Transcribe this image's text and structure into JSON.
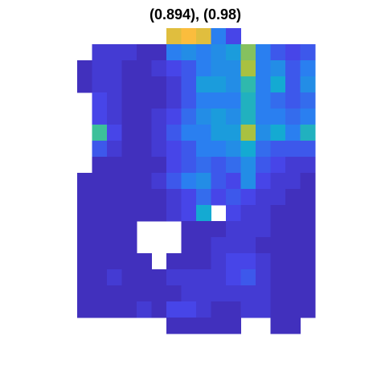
{
  "chart_data": {
    "type": "heatmap",
    "title": "(0.894), (0.98)",
    "colormap": "parula",
    "values": [
      [
        null,
        null,
        null,
        null,
        null,
        null,
        0.85,
        0.9,
        0.85,
        0.3,
        0.15,
        null,
        null,
        null,
        null,
        null
      ],
      [
        null,
        0.1,
        0.1,
        0.1,
        0.05,
        0.05,
        0.3,
        0.35,
        0.3,
        0.35,
        0.4,
        0.7,
        0.3,
        0.2,
        0.15,
        0.2
      ],
      [
        0.05,
        0.1,
        0.1,
        0.05,
        0.05,
        0.1,
        0.15,
        0.2,
        0.3,
        0.35,
        0.35,
        0.75,
        0.3,
        0.35,
        0.2,
        0.3
      ],
      [
        0.05,
        0.1,
        0.1,
        0.05,
        0.05,
        0.05,
        0.1,
        0.2,
        0.4,
        0.4,
        0.35,
        0.55,
        0.3,
        0.45,
        0.2,
        0.35
      ],
      [
        null,
        0.15,
        0.1,
        0.05,
        0.05,
        0.05,
        0.1,
        0.2,
        0.3,
        0.3,
        0.3,
        0.5,
        0.3,
        0.25,
        0.2,
        0.25
      ],
      [
        null,
        0.15,
        0.1,
        0.05,
        0.05,
        0.1,
        0.15,
        0.25,
        0.35,
        0.4,
        0.35,
        0.5,
        0.3,
        0.3,
        0.25,
        0.3
      ],
      [
        null,
        0.6,
        0.15,
        0.05,
        0.05,
        0.1,
        0.2,
        0.3,
        0.3,
        0.4,
        0.4,
        0.75,
        0.35,
        0.45,
        0.3,
        0.5
      ],
      [
        null,
        0.2,
        0.1,
        0.05,
        0.05,
        0.1,
        0.15,
        0.2,
        0.3,
        0.3,
        0.35,
        0.45,
        0.25,
        0.2,
        0.2,
        0.2
      ],
      [
        null,
        0.05,
        0.05,
        0.05,
        0.05,
        0.05,
        0.15,
        0.2,
        0.25,
        0.2,
        0.25,
        0.35,
        0.2,
        0.15,
        0.1,
        0.1
      ],
      [
        0.05,
        0.05,
        0.05,
        0.05,
        0.05,
        0.1,
        0.2,
        0.3,
        0.35,
        0.2,
        0.15,
        0.35,
        0.15,
        0.1,
        0.1,
        0.05
      ],
      [
        0.05,
        0.05,
        0.05,
        0.05,
        0.05,
        0.05,
        0.1,
        0.15,
        0.25,
        0.15,
        0.2,
        0.15,
        0.1,
        0.1,
        0.05,
        0.05
      ],
      [
        0.05,
        0.05,
        0.05,
        0.05,
        0.05,
        0.05,
        0.1,
        0.15,
        0.45,
        null,
        0.15,
        0.1,
        0.1,
        0.05,
        0.05,
        0.05
      ],
      [
        0.05,
        0.05,
        0.05,
        0.05,
        null,
        null,
        null,
        0.05,
        0.05,
        0.05,
        0.1,
        0.1,
        0.1,
        0.05,
        0.05,
        0.05
      ],
      [
        0.05,
        0.05,
        0.05,
        0.05,
        null,
        null,
        null,
        0.05,
        0.05,
        0.1,
        0.1,
        0.1,
        0.05,
        0.05,
        0.05,
        0.05
      ],
      [
        0.05,
        0.05,
        0.05,
        0.05,
        0.05,
        null,
        0.05,
        0.05,
        0.05,
        0.1,
        0.15,
        0.15,
        0.1,
        0.05,
        0.05,
        0.05
      ],
      [
        0.05,
        0.05,
        0.1,
        0.05,
        0.05,
        0.05,
        0.1,
        0.1,
        0.1,
        0.1,
        0.15,
        0.2,
        0.1,
        0.05,
        0.05,
        0.05
      ],
      [
        0.05,
        0.05,
        0.05,
        0.05,
        0.05,
        0.05,
        0.05,
        0.1,
        0.1,
        0.1,
        0.1,
        0.1,
        0.1,
        0.05,
        0.05,
        0.05
      ],
      [
        0.05,
        0.05,
        0.05,
        0.05,
        0.1,
        0.05,
        0.15,
        0.15,
        0.1,
        0.05,
        0.05,
        0.1,
        0.1,
        0.05,
        0.05,
        0.05
      ],
      [
        null,
        null,
        null,
        null,
        null,
        null,
        0.05,
        0.05,
        0.05,
        0.05,
        0.05,
        null,
        null,
        0.05,
        0.05,
        null
      ]
    ]
  }
}
